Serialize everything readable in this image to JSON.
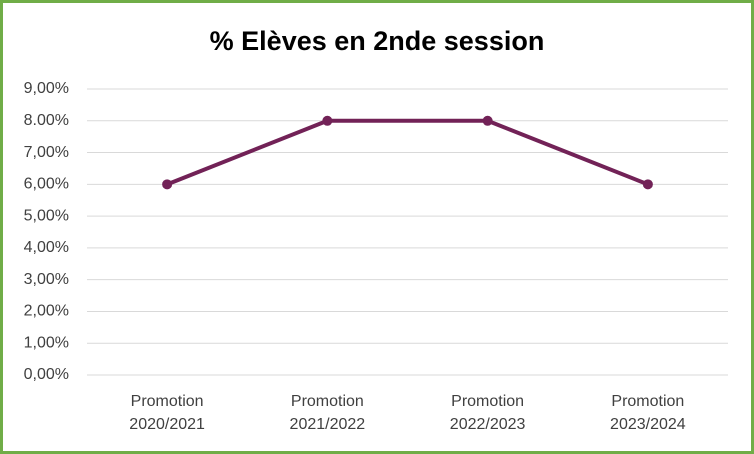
{
  "chart_data": {
    "type": "line",
    "title": "% Elèves en 2nde session",
    "categories": [
      "Promotion 2020/2021",
      "Promotion 2021/2022",
      "Promotion 2022/2023",
      "Promotion 2023/2024"
    ],
    "series": [
      {
        "name": "% Elèves en 2nde session",
        "color": "#722257",
        "values": [
          6,
          8,
          8,
          6
        ]
      }
    ],
    "ylim": [
      0,
      9
    ],
    "yticks": [
      {
        "value": 0,
        "label": "0,00%"
      },
      {
        "value": 1,
        "label": "1,00%"
      },
      {
        "value": 2,
        "label": "2,00%"
      },
      {
        "value": 3,
        "label": "3,00%"
      },
      {
        "value": 4,
        "label": "4,00%"
      },
      {
        "value": 5,
        "label": "5,00%"
      },
      {
        "value": 6,
        "label": "6,00%"
      },
      {
        "value": 7,
        "label": "7,00%"
      },
      {
        "value": 8,
        "label": "8.00%"
      },
      {
        "value": 9,
        "label": "9,00%"
      }
    ],
    "grid": true
  }
}
